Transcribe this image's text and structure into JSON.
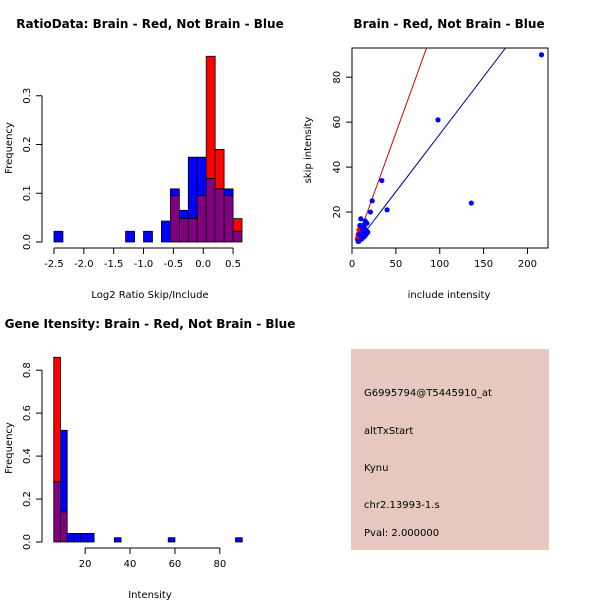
{
  "chart_data": [
    {
      "type": "bar",
      "title": "RatioData: Brain - Red, Not Brain - Blue",
      "xlabel": "Log2 Ratio Skip/Include",
      "ylabel": "Frequency",
      "xlim": [
        -2.6,
        0.75
      ],
      "ylim": [
        0,
        0.4
      ],
      "x_ticks": [
        -2.5,
        -2.0,
        -1.5,
        -1.0,
        -0.5,
        0.0,
        0.5
      ],
      "x_tick_labels": [
        "-2.5",
        "-2.0",
        "-1.5",
        "-1.0",
        "-0.5",
        "0.0",
        "0.5"
      ],
      "y_ticks": [
        0.0,
        0.1,
        0.2,
        0.3
      ],
      "y_tick_labels": [
        "0.0",
        "0.1",
        "0.2",
        "0.3"
      ],
      "bin_width": 0.15,
      "series": [
        {
          "name": "Not Brain",
          "color": "#0000ff",
          "bins": [
            [
              -2.5,
              0.022
            ],
            [
              -1.3,
              0.022
            ],
            [
              -1.0,
              0.022
            ],
            [
              -0.7,
              0.043
            ],
            [
              -0.55,
              0.109
            ],
            [
              -0.4,
              0.065
            ],
            [
              -0.25,
              0.174
            ],
            [
              -0.1,
              0.174
            ],
            [
              0.05,
              0.13
            ],
            [
              0.2,
              0.109
            ],
            [
              0.35,
              0.109
            ],
            [
              0.5,
              0.022
            ]
          ]
        },
        {
          "name": "Brain",
          "color": "#ff0000",
          "bins": [
            [
              -0.55,
              0.095
            ],
            [
              -0.4,
              0.048
            ],
            [
              -0.25,
              0.048
            ],
            [
              -0.1,
              0.095
            ],
            [
              0.05,
              0.381
            ],
            [
              0.2,
              0.19
            ],
            [
              0.35,
              0.095
            ],
            [
              0.5,
              0.048
            ]
          ]
        }
      ]
    },
    {
      "type": "scatter",
      "title": "Brain - Red, Not Brain - Blue",
      "xlabel": "include intensity",
      "ylabel": "skip intensity",
      "xlim": [
        0,
        220
      ],
      "ylim": [
        4,
        93
      ],
      "x_ticks": [
        0,
        50,
        100,
        150,
        200
      ],
      "x_tick_labels": [
        "0",
        "50",
        "100",
        "150",
        "200"
      ],
      "y_ticks": [
        20,
        40,
        60,
        80
      ],
      "y_tick_labels": [
        "20",
        "40",
        "60",
        "80"
      ],
      "series": [
        {
          "name": "Brain",
          "color": "#ff0000",
          "points": [
            [
              6,
              8
            ],
            [
              7,
              10
            ],
            [
              8,
              12
            ],
            [
              9,
              14
            ],
            [
              10,
              9
            ],
            [
              11,
              13
            ],
            [
              12,
              11
            ],
            [
              8,
              7
            ],
            [
              7,
              9
            ],
            [
              10,
              11
            ],
            [
              9,
              8
            ],
            [
              11,
              10
            ]
          ],
          "fit_line": [
            [
              5,
              6.5
            ],
            [
              85,
              93
            ]
          ]
        },
        {
          "name": "Not Brain",
          "color": "#0000ff",
          "points": [
            [
              7,
              7
            ],
            [
              8,
              10
            ],
            [
              9,
              14
            ],
            [
              10,
              17
            ],
            [
              11,
              8
            ],
            [
              12,
              12
            ],
            [
              13,
              10
            ],
            [
              14,
              13
            ],
            [
              15,
              16
            ],
            [
              16,
              12
            ],
            [
              17,
              15
            ],
            [
              18,
              11
            ],
            [
              14,
              9
            ],
            [
              12,
              14
            ],
            [
              16,
              10
            ],
            [
              21,
              20
            ],
            [
              23,
              25
            ],
            [
              34,
              34
            ],
            [
              40,
              21
            ],
            [
              98,
              61
            ],
            [
              136,
              24
            ],
            [
              216,
              90
            ]
          ],
          "fit_line": [
            [
              5,
              6
            ],
            [
              175,
              93
            ]
          ]
        }
      ]
    },
    {
      "type": "bar",
      "title": "Gene Itensity: Brain - Red, Not Brain - Blue",
      "xlabel": "Intensity",
      "ylabel": "Frequency",
      "xlim": [
        3,
        93
      ],
      "ylim": [
        0,
        0.88
      ],
      "x_ticks": [
        20,
        40,
        60,
        80
      ],
      "x_tick_labels": [
        "20",
        "40",
        "60",
        "80"
      ],
      "y_ticks": [
        0.0,
        0.2,
        0.4,
        0.6,
        0.8
      ],
      "y_tick_labels": [
        "0.0",
        "0.2",
        "0.4",
        "0.6",
        "0.8"
      ],
      "bin_width": 3,
      "series": [
        {
          "name": "Not Brain",
          "color": "#0000ff",
          "bins": [
            [
              6,
              0.28
            ],
            [
              9,
              0.52
            ],
            [
              12,
              0.04
            ],
            [
              15,
              0.04
            ],
            [
              18,
              0.04
            ],
            [
              21,
              0.04
            ],
            [
              33,
              0.02
            ],
            [
              57,
              0.02
            ],
            [
              87,
              0.02
            ]
          ]
        },
        {
          "name": "Brain",
          "color": "#ff0000",
          "bins": [
            [
              6,
              0.86
            ],
            [
              9,
              0.14
            ]
          ]
        }
      ]
    }
  ],
  "info_panel": {
    "background": "#e6c8c1",
    "probe_id": "G6995794@T5445910_at",
    "event_type": "altTxStart",
    "gene": "Kynu",
    "locus": "chr2.13993-1.s",
    "pval": "Pval: 2.000000",
    "pval_color": "#cc0000"
  }
}
